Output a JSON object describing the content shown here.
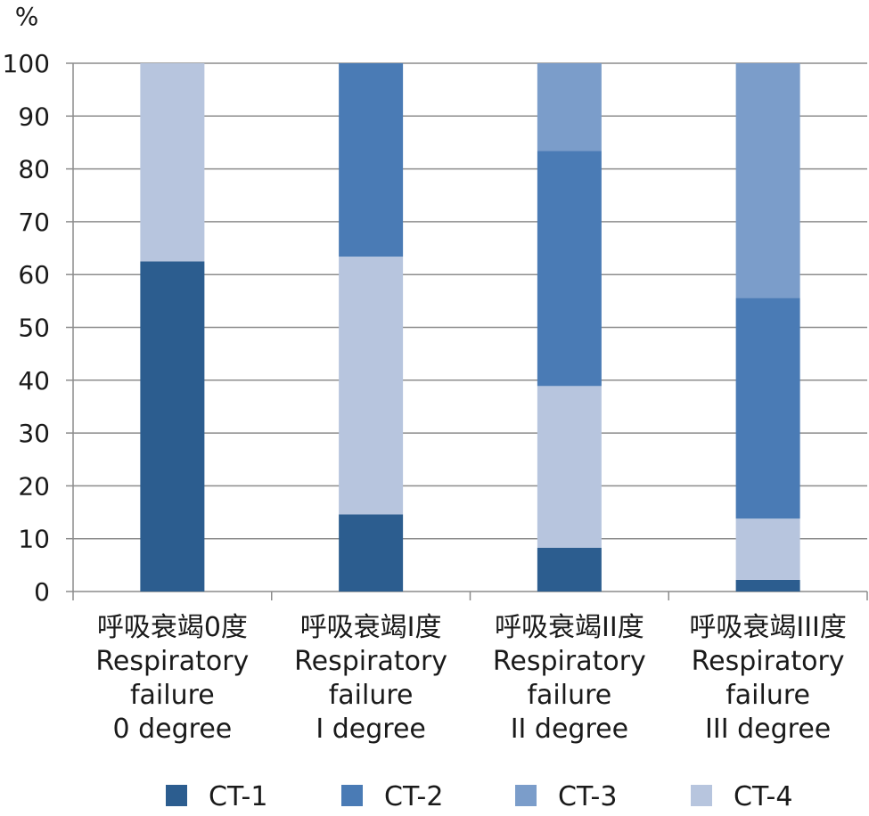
{
  "chart_data": {
    "type": "bar",
    "stacked": true,
    "y_unit": "%",
    "ylim": [
      0,
      100
    ],
    "yticks": [
      0,
      10,
      20,
      30,
      40,
      50,
      60,
      70,
      80,
      90,
      100
    ],
    "grid": true,
    "legend_position": "bottom",
    "categories": [
      [
        "呼吸衰竭0度",
        "Respiratory",
        "failure",
        "0 degree"
      ],
      [
        "呼吸衰竭I度",
        "Respiratory",
        "failure",
        "I degree"
      ],
      [
        "呼吸衰竭II度",
        "Respiratory",
        "failure",
        "II degree"
      ],
      [
        "呼吸衰竭III度",
        "Respiratory",
        "failure",
        "III degree"
      ]
    ],
    "series": [
      {
        "name": "CT-1",
        "color": "#2c5d8f",
        "values": [
          62.5,
          14.6,
          8.3,
          2.2
        ]
      },
      {
        "name": "CT-2",
        "color": "#4a7bb5",
        "values": [
          0,
          36.6,
          44.5,
          41.8
        ]
      },
      {
        "name": "CT-3",
        "color": "#7b9dca",
        "values": [
          0,
          0,
          16.6,
          44.4
        ]
      },
      {
        "name": "CT-4",
        "color": "#b7c5de",
        "values": [
          37.5,
          48.8,
          30.6,
          11.6
        ]
      }
    ],
    "stack_order": [
      0,
      3,
      1,
      2
    ]
  }
}
